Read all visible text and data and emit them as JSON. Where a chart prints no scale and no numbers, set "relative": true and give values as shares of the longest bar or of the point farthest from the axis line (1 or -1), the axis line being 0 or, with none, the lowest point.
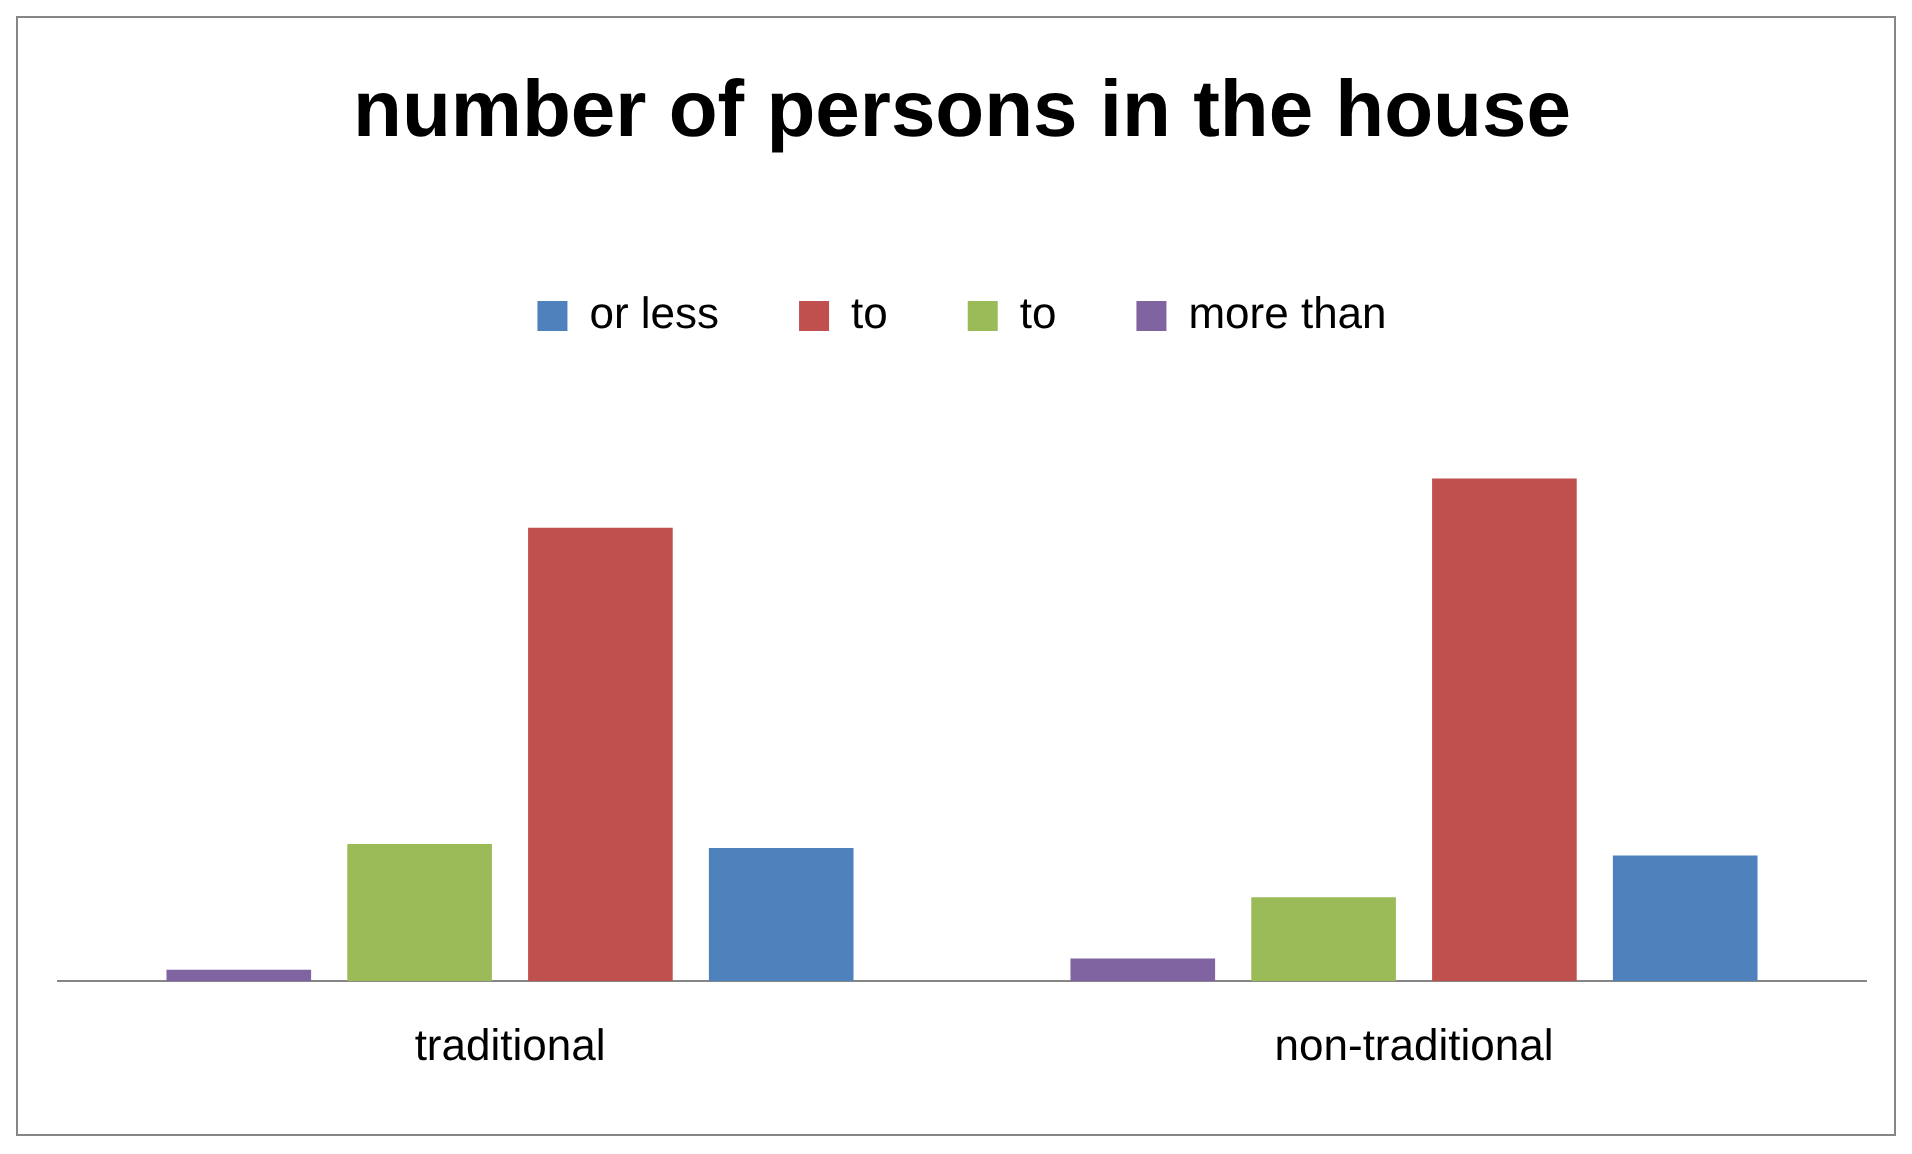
{
  "chart_data": {
    "type": "bar",
    "title": "number of persons in the house",
    "categories": [
      "traditional",
      "non-traditional"
    ],
    "relative": true,
    "legend": "top",
    "grid": false,
    "series": [
      {
        "name": "more than",
        "color": "#8064a2",
        "values": [
          0.023,
          0.045
        ]
      },
      {
        "name": "to",
        "color": "#9bbb59",
        "values": [
          0.273,
          0.167
        ]
      },
      {
        "name": "to",
        "color": "#c0504d",
        "values": [
          0.902,
          1
        ]
      },
      {
        "name": "or less",
        "color": "#4f81bd",
        "values": [
          0.265,
          0.25
        ]
      }
    ]
  }
}
